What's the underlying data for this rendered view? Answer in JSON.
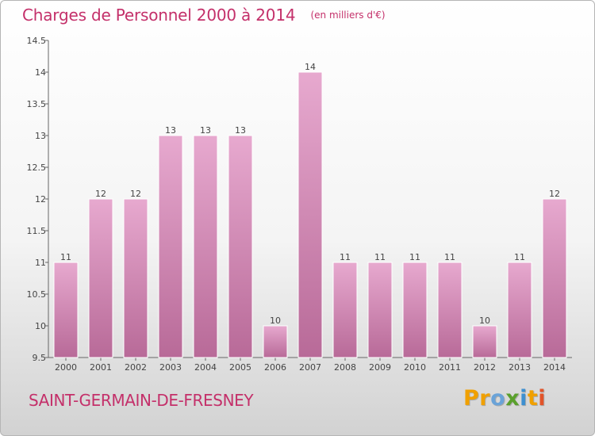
{
  "header": {
    "title": "Charges de Personnel 2000 à 2014",
    "unit": "(en milliers d'€)"
  },
  "footer": {
    "place": "SAINT-GERMAIN-DE-FRESNEY",
    "logo_letters": [
      "P",
      "r",
      "o",
      "x",
      "i",
      "t",
      "i"
    ]
  },
  "colors": {
    "accent": "#c4306a",
    "bar_light": "#e7a9cf",
    "bar_dark": "#b86a98"
  },
  "chart_data": {
    "type": "bar",
    "title": "Charges de Personnel 2000 à 2014",
    "xlabel": "",
    "ylabel": "",
    "categories": [
      "2000",
      "2001",
      "2002",
      "2003",
      "2004",
      "2005",
      "2006",
      "2007",
      "2008",
      "2009",
      "2010",
      "2011",
      "2012",
      "2013",
      "2014"
    ],
    "values": [
      11,
      12,
      12,
      13,
      13,
      13,
      10,
      14,
      11,
      11,
      11,
      11,
      10,
      11,
      12
    ],
    "data_labels": [
      "11",
      "12",
      "12",
      "13",
      "13",
      "13",
      "10",
      "14",
      "11",
      "11",
      "11",
      "11",
      "10",
      "11",
      "12"
    ],
    "ylim": [
      9.5,
      14.5
    ],
    "yticks": [
      9.5,
      10,
      10.5,
      11,
      11.5,
      12,
      12.5,
      13,
      13.5,
      14,
      14.5
    ],
    "ytick_labels": [
      "9.5",
      "10",
      "10.5",
      "11",
      "11.5",
      "12",
      "12.5",
      "13",
      "13.5",
      "14",
      "14.5"
    ],
    "grid": false,
    "legend": "none"
  }
}
